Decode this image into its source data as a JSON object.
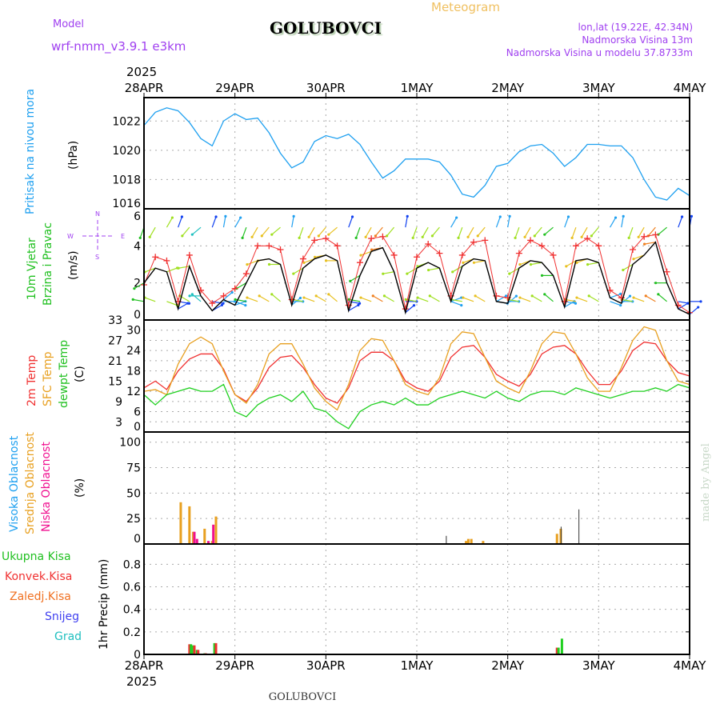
{
  "header": {
    "meteogram": "Meteogram",
    "model_label": "Model",
    "model_name": "wrf-nmm_v3.9.1 e3km",
    "station": "GOLUBOVCI",
    "lonlat": "lon,lat (19.22E, 42.34N)",
    "elevation": "Nadmorska Visina 13m",
    "model_elevation": "Nadmorska Visina u modelu 37.8733m",
    "credit": "made by Angel",
    "footer_station": "GOLUBOVCI"
  },
  "colors": {
    "title": "#f0c060",
    "meta": "#a040f0",
    "pressure": "#1ea0f0",
    "wind_speed": "#000000",
    "gust": "#f03030",
    "t2m": "#f03030",
    "sfc": "#e8a020",
    "dew": "#20d020",
    "high": "#1ea0f0",
    "mid": "#e8a020",
    "low": "#f01090",
    "total": "#20d020",
    "conv": "#f03030",
    "frz": "#f07020",
    "snow": "#4040f0",
    "grad": "#20c0c0"
  },
  "compass": {
    "n": "N",
    "s": "S",
    "w": "W",
    "e": "E"
  },
  "chart_data": [
    {
      "type": "line",
      "id": "pressure",
      "ylabel": "(hPa)",
      "title": "Pritisak na nivou mora",
      "ylim": [
        1016,
        1023.6
      ],
      "yticks": [
        1016,
        1018,
        1020,
        1022
      ],
      "x_hours_step": 3,
      "values": [
        1021.7,
        1022.6,
        1022.9,
        1022.7,
        1021.9,
        1020.8,
        1020.3,
        1022.0,
        1022.5,
        1022.1,
        1022.2,
        1021.2,
        1019.8,
        1018.8,
        1019.2,
        1020.6,
        1021.0,
        1020.8,
        1021.1,
        1020.4,
        1019.2,
        1018.1,
        1018.6,
        1019.4,
        1019.4,
        1019.4,
        1019.2,
        1018.3,
        1017.0,
        1016.8,
        1017.6,
        1018.9,
        1019.1,
        1019.9,
        1020.3,
        1020.4,
        1019.8,
        1018.9,
        1019.5,
        1020.4,
        1020.4,
        1020.3,
        1020.3,
        1019.5,
        1018.0,
        1016.8,
        1016.6,
        1017.4,
        1016.9
      ]
    },
    {
      "type": "line",
      "id": "wind",
      "ylabel": "(m/s)",
      "title": [
        "10m Vjetar",
        "Brzina i Pravac"
      ],
      "ylim": [
        0,
        6
      ],
      "yticks": [
        0,
        2,
        4,
        6
      ],
      "x_hours_step": 3,
      "series": [
        {
          "name": "speed",
          "values": [
            2.0,
            2.8,
            2.6,
            0.6,
            2.9,
            1.3,
            0.5,
            1.1,
            0.8,
            2.0,
            3.2,
            3.3,
            3.0,
            0.8,
            2.8,
            3.3,
            3.5,
            3.2,
            0.5,
            2.4,
            3.7,
            3.9,
            2.6,
            0.4,
            2.8,
            3.1,
            2.8,
            1.0,
            2.9,
            3.3,
            3.2,
            1.0,
            0.9,
            2.8,
            3.2,
            3.1,
            2.4,
            0.7,
            3.2,
            3.3,
            3.1,
            1.2,
            0.9,
            3.0,
            3.5,
            4.2,
            2.0,
            0.6,
            0.3
          ]
        },
        {
          "name": "gust",
          "values": [
            1.9,
            3.4,
            3.2,
            1.0,
            3.5,
            1.6,
            0.9,
            1.3,
            1.7,
            2.5,
            4.0,
            4.0,
            3.8,
            1.1,
            3.3,
            4.3,
            4.4,
            4.0,
            0.8,
            3.1,
            4.4,
            4.5,
            3.5,
            0.6,
            3.4,
            4.1,
            3.6,
            1.3,
            3.5,
            4.2,
            4.3,
            1.3,
            1.2,
            3.6,
            4.3,
            4.0,
            3.5,
            1.0,
            4.0,
            4.4,
            4.0,
            1.6,
            1.2,
            3.8,
            4.5,
            4.6,
            2.6,
            0.8,
            0.4
          ]
        }
      ],
      "direction_deg": [
        200,
        210,
        30,
        20,
        220,
        230,
        20,
        10,
        30,
        200,
        210,
        220,
        230,
        10,
        200,
        210,
        220,
        230,
        20,
        200,
        210,
        220,
        220,
        10,
        200,
        210,
        220,
        30,
        200,
        210,
        220,
        20,
        10,
        200,
        210,
        220,
        230,
        20,
        200,
        210,
        220,
        30,
        10,
        200,
        210,
        220,
        230,
        20,
        10
      ]
    },
    {
      "type": "line",
      "id": "temperature",
      "ylabel": "(C)",
      "title": [
        "2m Temp",
        "SFC Temp",
        "dewpt Temp"
      ],
      "ylim": [
        0,
        33
      ],
      "yticks": [
        0,
        3,
        6,
        9,
        12,
        15,
        18,
        21,
        24,
        27,
        30,
        33
      ],
      "x_hours_step": 3,
      "series": [
        {
          "name": "2m Temp",
          "values": [
            13,
            15,
            12.5,
            18,
            21.5,
            23,
            23,
            18.5,
            11,
            9,
            13,
            19,
            22,
            22.5,
            19,
            14,
            10,
            8.5,
            13,
            21,
            23.5,
            23.5,
            21,
            15,
            13,
            12,
            15,
            22,
            25,
            25.5,
            22,
            17,
            15,
            13.5,
            17,
            23,
            25,
            25.5,
            23,
            18,
            14,
            14,
            18,
            24,
            26.5,
            26,
            21,
            17.5,
            16.5
          ]
        },
        {
          "name": "SFC Temp",
          "values": [
            12,
            12.5,
            11,
            20,
            26,
            28,
            26,
            18,
            11,
            8.5,
            14,
            23,
            26,
            26,
            20,
            13,
            9,
            6.5,
            14,
            24,
            27.5,
            27,
            21,
            14,
            12,
            11,
            16,
            26,
            29.5,
            29,
            22,
            15,
            13,
            11.5,
            18,
            26,
            29.5,
            29,
            23,
            16,
            12,
            12,
            19,
            27,
            31,
            30,
            21,
            15,
            14
          ]
        },
        {
          "name": "dewpt Temp",
          "values": [
            11,
            8,
            11,
            12,
            13,
            12,
            12,
            14,
            6,
            4.5,
            8,
            10,
            11,
            9,
            12,
            7,
            6,
            3,
            1,
            6,
            8,
            9,
            8,
            10,
            8,
            8,
            10,
            11,
            12,
            11,
            10,
            12,
            10,
            9,
            11,
            12,
            12,
            11,
            13,
            12,
            11,
            10,
            11,
            12,
            12,
            13,
            12,
            14,
            13
          ]
        }
      ]
    },
    {
      "type": "bar",
      "id": "clouds",
      "ylabel": "(%)",
      "title": [
        "Visoka Oblacnost",
        "Srednja Oblacnost",
        "Niska Oblacnost"
      ],
      "ylim": [
        0,
        110
      ],
      "yticks": [
        0,
        25,
        50,
        75,
        100
      ],
      "bars": [
        {
          "hour": 9.7,
          "series": "mid",
          "value": 41
        },
        {
          "hour": 12,
          "series": "mid",
          "value": 37
        },
        {
          "hour": 13,
          "series": "mid",
          "value": 12
        },
        {
          "hour": 13.3,
          "series": "low",
          "value": 12
        },
        {
          "hour": 14,
          "series": "low",
          "value": 5
        },
        {
          "hour": 16,
          "series": "mid",
          "value": 15
        },
        {
          "hour": 17,
          "series": "low",
          "value": 3
        },
        {
          "hour": 18,
          "series": "mid",
          "value": 3
        },
        {
          "hour": 18.3,
          "series": "low",
          "value": 19
        },
        {
          "hour": 19,
          "series": "mid",
          "value": 27
        },
        {
          "hour": 80,
          "series": "dark",
          "value": 8
        },
        {
          "hour": 85,
          "series": "mid",
          "value": 3
        },
        {
          "hour": 85.6,
          "series": "mid",
          "value": 5
        },
        {
          "hour": 86.4,
          "series": "mid",
          "value": 5
        },
        {
          "hour": 89.5,
          "series": "mid",
          "value": 3
        },
        {
          "hour": 109,
          "series": "mid",
          "value": 10
        },
        {
          "hour": 110,
          "series": "mid",
          "value": 15
        },
        {
          "hour": 110.3,
          "series": "dark",
          "value": 17
        },
        {
          "hour": 115,
          "series": "dark",
          "value": 34
        }
      ]
    },
    {
      "type": "bar",
      "id": "precip",
      "ylabel": "1hr Precip (mm)",
      "title": [
        "Ukupna Kisa",
        "Konvek.Kisa",
        "Zaledj.Kisa",
        "Snijeg",
        "Grad"
      ],
      "ylim": [
        0,
        0.98
      ],
      "yticks": [
        0,
        0.2,
        0.4,
        0.6,
        0.8
      ],
      "bars": [
        {
          "hour": 12,
          "series": "conv",
          "value": 0.09
        },
        {
          "hour": 12.4,
          "series": "total",
          "value": 0.09
        },
        {
          "hour": 13,
          "series": "total",
          "value": 0.08
        },
        {
          "hour": 13.3,
          "series": "conv",
          "value": 0.08
        },
        {
          "hour": 14,
          "series": "total",
          "value": 0.04
        },
        {
          "hour": 14.3,
          "series": "conv",
          "value": 0.04
        },
        {
          "hour": 16,
          "series": "total",
          "value": 0.01
        },
        {
          "hour": 16.3,
          "series": "conv",
          "value": 0.01
        },
        {
          "hour": 18.6,
          "series": "total",
          "value": 0.1
        },
        {
          "hour": 19,
          "series": "conv",
          "value": 0.1
        },
        {
          "hour": 109,
          "series": "conv",
          "value": 0.06
        },
        {
          "hour": 109.4,
          "series": "total",
          "value": 0.06
        },
        {
          "hour": 110.3,
          "series": "total",
          "value": 0.14
        }
      ]
    }
  ],
  "time_axis": {
    "year": "2025",
    "labels": [
      "28APR",
      "29APR",
      "30APR",
      "1MAY",
      "2MAY",
      "3MAY",
      "4MAY"
    ],
    "hours_total": 144
  }
}
